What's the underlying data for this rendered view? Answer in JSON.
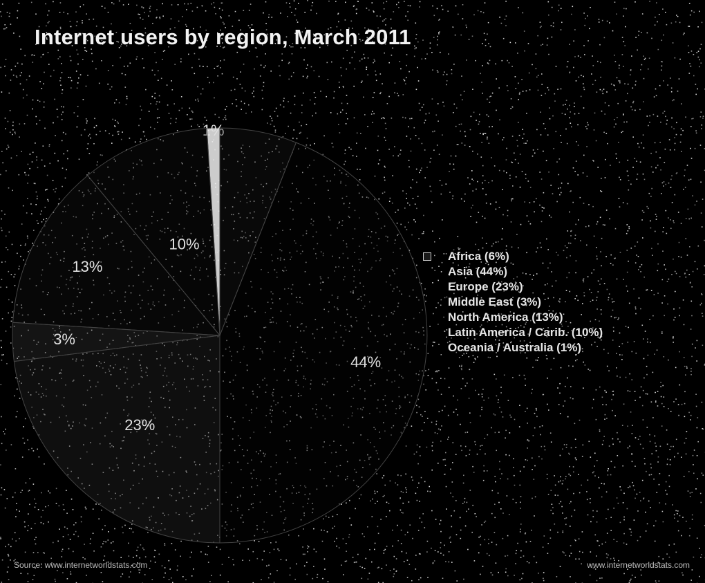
{
  "chart_data": {
    "type": "pie",
    "title": "Internet users by region, March 2011",
    "labels": [
      "Africa (6%)",
      "Asia (44%)",
      "Europe (23%)",
      "Middle East (3%)",
      "North America (13%)",
      "Latin America / Carib. (10%)",
      "Oceania / Australia (1%)"
    ],
    "values": [
      6,
      44,
      23,
      3,
      13,
      10,
      1
    ],
    "slice_labels": [
      "",
      "44%",
      "23%",
      "3%",
      "13%",
      "10%",
      "1%"
    ],
    "legend_placement": "right",
    "colors": [
      "#1a1a1a",
      "#050505",
      "#2a2a2a",
      "#3a3a3a",
      "#151515",
      "#101010",
      "#f0f0f0"
    ]
  },
  "footer": {
    "left": "Source: www.internetworldstats.com",
    "right": "www.internetworldstats.com"
  }
}
